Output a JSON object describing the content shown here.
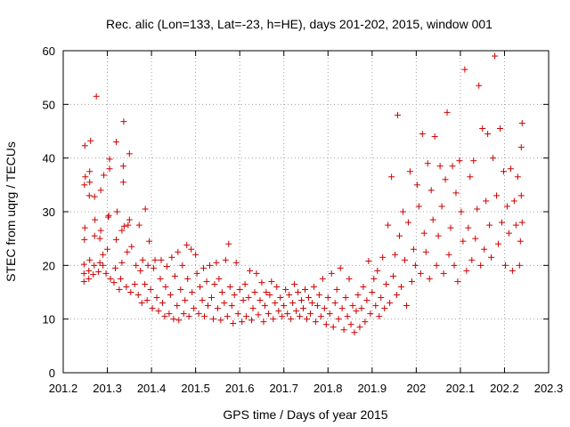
{
  "chart_data": {
    "type": "scatter",
    "title": "Rec. alic (Lon=133, Lat=-23, h=HE), days 201-202, 2015, window 001",
    "xlabel": "GPS time / Days of year 2015",
    "ylabel": "STEC from uqrg / TECUs",
    "xlim": [
      201.2,
      202.3
    ],
    "ylim": [
      0,
      60
    ],
    "xticks": [
      201.2,
      201.3,
      201.4,
      201.5,
      201.6,
      201.7,
      201.8,
      201.9,
      202.0,
      202.1,
      202.2,
      202.3
    ],
    "xtick_labels": [
      "201.2",
      "201.3",
      "201.4",
      "201.5",
      "201.6",
      "201.7",
      "201.8",
      "201.9",
      "202",
      "202.1",
      "202.2",
      "202.3"
    ],
    "yticks": [
      0,
      10,
      20,
      30,
      40,
      50,
      60
    ],
    "ytick_labels": [
      "0",
      "10",
      "20",
      "30",
      "40",
      "50",
      "60"
    ],
    "grid": true,
    "marker": "+",
    "marker_color": "#cc0000",
    "series": [
      {
        "points": [
          [
            201.247,
            17.0
          ],
          [
            201.247,
            18.5
          ],
          [
            201.247,
            20.2
          ],
          [
            201.248,
            24.8
          ],
          [
            201.249,
            27.0
          ],
          [
            201.248,
            35.0
          ],
          [
            201.25,
            36.5
          ],
          [
            201.249,
            42.3
          ],
          [
            201.258,
            17.5
          ],
          [
            201.258,
            19.0
          ],
          [
            201.26,
            21.0
          ],
          [
            201.259,
            33.0
          ],
          [
            201.26,
            35.5
          ],
          [
            201.26,
            37.5
          ],
          [
            201.262,
            43.2
          ],
          [
            201.268,
            18.3
          ],
          [
            201.27,
            20.0
          ],
          [
            201.271,
            25.5
          ],
          [
            201.272,
            28.5
          ],
          [
            201.271,
            32.8
          ],
          [
            201.275,
            51.5
          ],
          [
            201.28,
            18.8
          ],
          [
            201.283,
            20.5
          ],
          [
            201.283,
            25.0
          ],
          [
            201.285,
            26.5
          ],
          [
            201.285,
            34.0
          ],
          [
            201.29,
            20.0
          ],
          [
            201.29,
            22.0
          ],
          [
            201.292,
            36.8
          ],
          [
            201.297,
            18.5
          ],
          [
            201.3,
            23.0
          ],
          [
            201.302,
            29.0
          ],
          [
            201.303,
            29.3
          ],
          [
            201.305,
            38.0
          ],
          [
            201.305,
            39.8
          ],
          [
            201.307,
            17.5
          ],
          [
            201.315,
            16.8
          ],
          [
            201.318,
            19.5
          ],
          [
            201.32,
            24.8
          ],
          [
            201.32,
            43.0
          ],
          [
            201.322,
            30.0
          ],
          [
            201.327,
            15.5
          ],
          [
            201.33,
            17.5
          ],
          [
            201.333,
            20.5
          ],
          [
            201.333,
            26.5
          ],
          [
            201.336,
            35.5
          ],
          [
            201.336,
            38.5
          ],
          [
            201.337,
            46.8
          ],
          [
            201.338,
            27.3
          ],
          [
            201.343,
            16.0
          ],
          [
            201.345,
            22.5
          ],
          [
            201.347,
            27.5
          ],
          [
            201.35,
            28.5
          ],
          [
            201.35,
            40.8
          ],
          [
            201.355,
            23.5
          ],
          [
            201.353,
            15.0
          ],
          [
            201.362,
            16.5
          ],
          [
            201.365,
            20.0
          ],
          [
            201.37,
            14.5
          ],
          [
            201.372,
            27.5
          ],
          [
            201.375,
            19.0
          ],
          [
            201.378,
            13.0
          ],
          [
            201.38,
            21.0
          ],
          [
            201.385,
            16.5
          ],
          [
            201.386,
            30.5
          ],
          [
            201.39,
            13.5
          ],
          [
            201.392,
            20.0
          ],
          [
            201.395,
            24.5
          ],
          [
            201.398,
            15.5
          ],
          [
            201.402,
            12.0
          ],
          [
            201.405,
            19.5
          ],
          [
            201.408,
            21.0
          ],
          [
            201.412,
            14.0
          ],
          [
            201.416,
            11.5
          ],
          [
            201.42,
            17.5
          ],
          [
            201.422,
            21.0
          ],
          [
            201.425,
            13.0
          ],
          [
            201.43,
            10.5
          ],
          [
            201.432,
            16.0
          ],
          [
            201.435,
            19.8
          ],
          [
            201.44,
            11.0
          ],
          [
            201.443,
            14.5
          ],
          [
            201.446,
            21.5
          ],
          [
            201.45,
            10.0
          ],
          [
            201.453,
            18.0
          ],
          [
            201.458,
            12.5
          ],
          [
            201.46,
            22.5
          ],
          [
            201.462,
            9.8
          ],
          [
            201.466,
            15.5
          ],
          [
            201.47,
            20.0
          ],
          [
            201.473,
            11.0
          ],
          [
            201.476,
            13.5
          ],
          [
            201.48,
            23.8
          ],
          [
            201.482,
            17.5
          ],
          [
            201.485,
            10.5
          ],
          [
            201.49,
            23.0
          ],
          [
            201.492,
            15.0
          ],
          [
            201.496,
            12.0
          ],
          [
            201.5,
            22.0
          ],
          [
            201.503,
            18.5
          ],
          [
            201.507,
            11.0
          ],
          [
            201.51,
            16.0
          ],
          [
            201.515,
            13.5
          ],
          [
            201.518,
            19.5
          ],
          [
            201.52,
            10.5
          ],
          [
            201.525,
            17.0
          ],
          [
            201.528,
            12.5
          ],
          [
            201.532,
            20.0
          ],
          [
            201.536,
            14.0
          ],
          [
            201.54,
            10.0
          ],
          [
            201.543,
            16.5
          ],
          [
            201.547,
            20.5
          ],
          [
            201.55,
            12.0
          ],
          [
            201.553,
            17.5
          ],
          [
            201.557,
            9.8
          ],
          [
            201.56,
            15.0
          ],
          [
            201.565,
            13.0
          ],
          [
            201.568,
            21.0
          ],
          [
            201.572,
            10.5
          ],
          [
            201.575,
            24.0
          ],
          [
            201.578,
            16.0
          ],
          [
            201.582,
            12.5
          ],
          [
            201.585,
            9.2
          ],
          [
            201.588,
            14.5
          ],
          [
            201.592,
            20.5
          ],
          [
            201.596,
            11.0
          ],
          [
            201.6,
            15.5
          ],
          [
            201.605,
            9.5
          ],
          [
            201.608,
            13.5
          ],
          [
            201.612,
            16.5
          ],
          [
            201.615,
            10.5
          ],
          [
            201.62,
            14.0
          ],
          [
            201.623,
            19.0
          ],
          [
            201.627,
            9.8
          ],
          [
            201.63,
            12.0
          ],
          [
            201.634,
            15.0
          ],
          [
            201.638,
            18.5
          ],
          [
            201.642,
            10.8
          ],
          [
            201.646,
            13.5
          ],
          [
            201.65,
            16.8
          ],
          [
            201.654,
            9.5
          ],
          [
            201.657,
            12.5
          ],
          [
            201.66,
            15.0
          ],
          [
            201.665,
            11.0
          ],
          [
            201.668,
            14.5
          ],
          [
            201.672,
            17.0
          ],
          [
            201.676,
            10.0
          ],
          [
            201.68,
            13.0
          ],
          [
            201.684,
            16.0
          ],
          [
            201.688,
            11.5
          ],
          [
            201.692,
            14.0
          ],
          [
            201.696,
            10.5
          ],
          [
            201.7,
            12.5
          ],
          [
            201.704,
            15.5
          ],
          [
            201.708,
            11.0
          ],
          [
            201.712,
            14.5
          ],
          [
            201.716,
            10.0
          ],
          [
            201.72,
            13.0
          ],
          [
            201.724,
            16.5
          ],
          [
            201.728,
            11.5
          ],
          [
            201.732,
            15.0
          ],
          [
            201.736,
            10.5
          ],
          [
            201.74,
            13.5
          ],
          [
            201.744,
            12.0
          ],
          [
            201.748,
            15.5
          ],
          [
            201.752,
            10.0
          ],
          [
            201.756,
            14.0
          ],
          [
            201.76,
            11.0
          ],
          [
            201.764,
            13.0
          ],
          [
            201.768,
            16.0
          ],
          [
            201.772,
            9.5
          ],
          [
            201.776,
            12.5
          ],
          [
            201.78,
            14.5
          ],
          [
            201.784,
            10.5
          ],
          [
            201.788,
            17.5
          ],
          [
            201.792,
            12.0
          ],
          [
            201.796,
            9.0
          ],
          [
            201.8,
            14.0
          ],
          [
            201.804,
            11.0
          ],
          [
            201.808,
            18.5
          ],
          [
            201.812,
            8.5
          ],
          [
            201.816,
            13.0
          ],
          [
            201.82,
            15.5
          ],
          [
            201.824,
            10.0
          ],
          [
            201.828,
            19.5
          ],
          [
            201.832,
            12.0
          ],
          [
            201.836,
            8.0
          ],
          [
            201.84,
            14.0
          ],
          [
            201.844,
            10.5
          ],
          [
            201.848,
            17.5
          ],
          [
            201.852,
            9.0
          ],
          [
            201.856,
            12.5
          ],
          [
            201.86,
            7.5
          ],
          [
            201.864,
            11.5
          ],
          [
            201.868,
            14.5
          ],
          [
            201.872,
            8.5
          ],
          [
            201.876,
            12.0
          ],
          [
            201.88,
            16.0
          ],
          [
            201.884,
            9.5
          ],
          [
            201.888,
            13.5
          ],
          [
            201.892,
            20.8
          ],
          [
            201.896,
            11.0
          ],
          [
            201.9,
            15.0
          ],
          [
            201.904,
            17.5
          ],
          [
            201.908,
            12.5
          ],
          [
            201.912,
            19.0
          ],
          [
            201.916,
            10.5
          ],
          [
            201.92,
            14.0
          ],
          [
            201.924,
            21.5
          ],
          [
            201.928,
            12.0
          ],
          [
            201.932,
            16.5
          ],
          [
            201.936,
            27.5
          ],
          [
            201.94,
            13.0
          ],
          [
            201.944,
            36.5
          ],
          [
            201.948,
            18.0
          ],
          [
            201.952,
            22.0
          ],
          [
            201.956,
            14.5
          ],
          [
            201.958,
            48.0
          ],
          [
            201.962,
            25.5
          ],
          [
            201.966,
            16.0
          ],
          [
            201.97,
            30.0
          ],
          [
            201.974,
            21.0
          ],
          [
            201.978,
            12.5
          ],
          [
            201.982,
            28.0
          ],
          [
            201.986,
            37.5
          ],
          [
            201.99,
            17.0
          ],
          [
            201.994,
            23.0
          ],
          [
            201.998,
            20.0
          ],
          [
            202.002,
            35.0
          ],
          [
            202.006,
            31.0
          ],
          [
            202.01,
            18.5
          ],
          [
            202.014,
            44.5
          ],
          [
            202.018,
            26.0
          ],
          [
            202.022,
            22.5
          ],
          [
            202.026,
            39.0
          ],
          [
            202.03,
            17.5
          ],
          [
            202.034,
            34.0
          ],
          [
            202.038,
            28.5
          ],
          [
            202.042,
            44.0
          ],
          [
            202.046,
            20.0
          ],
          [
            202.05,
            25.5
          ],
          [
            202.054,
            38.5
          ],
          [
            202.058,
            31.0
          ],
          [
            202.062,
            18.5
          ],
          [
            202.066,
            36.0
          ],
          [
            202.07,
            48.5
          ],
          [
            202.074,
            22.0
          ],
          [
            202.078,
            27.0
          ],
          [
            202.082,
            38.5
          ],
          [
            202.086,
            20.0
          ],
          [
            202.09,
            33.5
          ],
          [
            202.094,
            17.0
          ],
          [
            202.098,
            39.5
          ],
          [
            202.102,
            30.0
          ],
          [
            202.106,
            24.5
          ],
          [
            202.11,
            56.5
          ],
          [
            202.114,
            19.0
          ],
          [
            202.118,
            27.0
          ],
          [
            202.122,
            36.5
          ],
          [
            202.126,
            21.0
          ],
          [
            202.13,
            39.5
          ],
          [
            202.134,
            25.0
          ],
          [
            202.138,
            30.5
          ],
          [
            202.142,
            53.5
          ],
          [
            202.146,
            20.0
          ],
          [
            202.15,
            45.5
          ],
          [
            202.154,
            23.0
          ],
          [
            202.158,
            32.0
          ],
          [
            202.162,
            44.5
          ],
          [
            202.166,
            27.5
          ],
          [
            202.17,
            21.5
          ],
          [
            202.174,
            40.0
          ],
          [
            202.178,
            59.0
          ],
          [
            202.182,
            33.0
          ],
          [
            202.186,
            24.0
          ],
          [
            202.19,
            45.5
          ],
          [
            202.194,
            28.0
          ],
          [
            202.198,
            37.5
          ],
          [
            202.202,
            20.0
          ],
          [
            202.206,
            31.0
          ],
          [
            202.21,
            26.0
          ],
          [
            202.214,
            38.0
          ],
          [
            202.218,
            19.0
          ],
          [
            202.222,
            32.0
          ],
          [
            202.226,
            27.5
          ],
          [
            202.23,
            36.5
          ],
          [
            202.234,
            20.0
          ],
          [
            202.236,
            24.5
          ],
          [
            202.238,
            33.0
          ],
          [
            202.238,
            42.0
          ],
          [
            202.24,
            46.5
          ],
          [
            202.24,
            28.0
          ]
        ]
      }
    ]
  }
}
